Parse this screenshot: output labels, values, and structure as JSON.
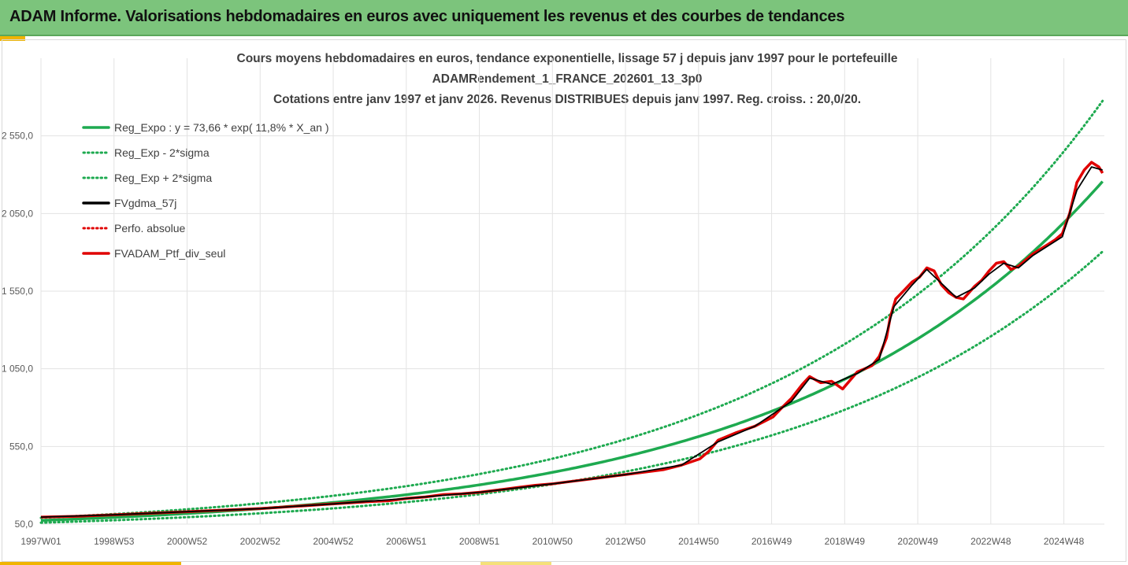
{
  "header": {
    "title": "ADAM Informe. Valorisations hebdomadaires en euros avec uniquement les revenus et des courbes de tendances"
  },
  "colors": {
    "banner": "#7cc47c",
    "trend_green": "#1eaa50",
    "black": "#000000",
    "red": "#e00000"
  },
  "chart_data": {
    "type": "line",
    "title_lines": [
      "Cours moyens hebdomadaires  en euros, tendance exponentielle, lissage 57 j depuis janv 1997 pour le portefeuille",
      "ADAMRendement_1_FRANCE_202601_13_3p0",
      "Cotations entre janv 1997 et janv 2026. Revenus DISTRIBUES depuis janv 1997. Reg. croiss. : 20,0/20."
    ],
    "x_tick_labels": [
      "1997W01",
      "1998W53",
      "2000W52",
      "2002W52",
      "2004W52",
      "2006W51",
      "2008W51",
      "2010W50",
      "2012W50",
      "2014W50",
      "2016W49",
      "2018W49",
      "2020W49",
      "2022W48",
      "2024W48"
    ],
    "y_tick_labels": [
      "50,0",
      "550,0",
      "1 050,0",
      "1 550,0",
      "2 050,0",
      "2 550,0"
    ],
    "ylim": [
      50,
      3050
    ],
    "xlim": [
      1997.0,
      2026.05
    ],
    "legend_placement": "top-left",
    "legend": [
      "Reg_Expo : y = 73,66 * exp( 11,8% *  X_an )",
      "Reg_Exp - 2*sigma",
      "Reg_Exp + 2*sigma",
      "FVgdma_57j",
      "Perfo. absolue",
      "FVADAM_Ptf_div_seul"
    ],
    "trend": {
      "a": 73.66,
      "rate": 0.118,
      "lower_factor": 0.8,
      "upper_factor": 1.23
    },
    "series": [
      {
        "name": "FVADAM_Ptf_div_seul",
        "x": [
          1997.0,
          1998.0,
          1999.0,
          2000.0,
          2001.0,
          2002.0,
          2003.0,
          2004.0,
          2005.0,
          2006.0,
          2006.5,
          2007.0,
          2007.5,
          2008.0,
          2008.5,
          2009.0,
          2009.5,
          2010.0,
          2010.5,
          2011.0,
          2011.5,
          2012.0,
          2012.5,
          2013.0,
          2013.5,
          2014.0,
          2014.5,
          2015.0,
          2015.25,
          2015.5,
          2016.0,
          2016.5,
          2017.0,
          2017.2,
          2017.5,
          2017.8,
          2018.0,
          2018.3,
          2018.6,
          2018.9,
          2019.1,
          2019.3,
          2019.5,
          2019.7,
          2019.9,
          2020.1,
          2020.2,
          2020.35,
          2020.6,
          2020.8,
          2021.0,
          2021.2,
          2021.4,
          2021.6,
          2021.8,
          2022.0,
          2022.2,
          2022.5,
          2022.7,
          2022.9,
          2023.1,
          2023.3,
          2023.5,
          2023.7,
          2023.9,
          2024.1,
          2024.3,
          2024.5,
          2024.7,
          2024.9,
          2025.1,
          2025.3,
          2025.5,
          2025.7,
          2025.9,
          2026.0
        ],
        "y": [
          95,
          100,
          110,
          120,
          130,
          140,
          150,
          165,
          180,
          195,
          200,
          215,
          225,
          240,
          245,
          255,
          270,
          285,
          300,
          310,
          325,
          340,
          355,
          370,
          385,
          400,
          430,
          470,
          520,
          590,
          640,
          680,
          740,
          790,
          860,
          950,
          1000,
          960,
          970,
          920,
          975,
          1030,
          1050,
          1070,
          1130,
          1250,
          1380,
          1500,
          1560,
          1610,
          1640,
          1700,
          1680,
          1590,
          1540,
          1510,
          1500,
          1580,
          1620,
          1680,
          1730,
          1740,
          1690,
          1710,
          1750,
          1790,
          1820,
          1850,
          1880,
          1920,
          2050,
          2250,
          2330,
          2380,
          2350,
          2310
        ]
      },
      {
        "name": "FVgdma_57j",
        "x": [
          1997.0,
          1999.0,
          2001.0,
          2003.0,
          2005.0,
          2007.0,
          2009.0,
          2011.0,
          2013.0,
          2014.5,
          2015.5,
          2016.5,
          2017.5,
          2018.0,
          2018.6,
          2019.3,
          2019.9,
          2020.3,
          2020.8,
          2021.2,
          2021.6,
          2022.0,
          2022.5,
          2022.9,
          2023.3,
          2023.7,
          2024.1,
          2024.5,
          2024.9,
          2025.3,
          2025.7,
          2026.0
        ],
        "y": [
          95,
          110,
          130,
          150,
          180,
          215,
          255,
          310,
          370,
          430,
          580,
          680,
          840,
          990,
          950,
          1020,
          1110,
          1450,
          1590,
          1690,
          1600,
          1510,
          1570,
          1660,
          1730,
          1700,
          1780,
          1840,
          1900,
          2200,
          2350,
          2330
        ]
      }
    ]
  }
}
